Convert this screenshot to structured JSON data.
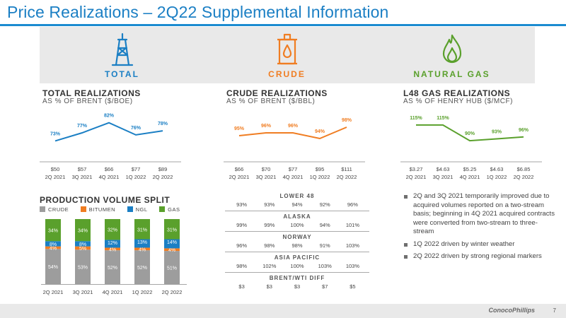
{
  "title": "Price Realizations – 2Q22 Supplemental Information",
  "colors": {
    "accent": "#1b7fc4",
    "total": "#1b7fc4",
    "crude": "#f07d22",
    "gas": "#5aa02c",
    "grey": "#9d9d9d"
  },
  "banner": {
    "total": {
      "label": "TOTAL",
      "icon": "oil-derrick-icon"
    },
    "crude": {
      "label": "CRUDE",
      "icon": "oil-drum-icon"
    },
    "gas": {
      "label": "NATURAL GAS",
      "icon": "flame-icon"
    }
  },
  "total_section": {
    "title": "TOTAL REALIZATIONS",
    "subtitle": "AS % OF BRENT ($/BOE)"
  },
  "crude_section": {
    "title": "CRUDE REALIZATIONS",
    "subtitle": "AS % OF BRENT ($/BBL)"
  },
  "gas_section": {
    "title": "L48 GAS REALIZATIONS",
    "subtitle": "AS % OF HENRY HUB ($/MCF)"
  },
  "production_section": {
    "title": "PRODUCTION VOLUME SPLIT",
    "legend": [
      "CRUDE",
      "BITUMEN",
      "NGL",
      "GAS"
    ]
  },
  "chart_data": [
    {
      "type": "line",
      "title": "TOTAL REALIZATIONS",
      "categories": [
        "2Q 2021",
        "3Q 2021",
        "4Q 2021",
        "1Q 2022",
        "2Q 2022"
      ],
      "prices": [
        "$50",
        "$57",
        "$66",
        "$77",
        "$89"
      ],
      "values": [
        73,
        77,
        82,
        76,
        78
      ],
      "value_labels": [
        "73%",
        "77%",
        "82%",
        "76%",
        "78%"
      ],
      "ylim": [
        70,
        84
      ]
    },
    {
      "type": "line",
      "title": "CRUDE REALIZATIONS",
      "categories": [
        "2Q 2021",
        "3Q 2021",
        "4Q 2021",
        "1Q 2022",
        "2Q 2022"
      ],
      "prices": [
        "$66",
        "$70",
        "$77",
        "$95",
        "$111"
      ],
      "values": [
        95,
        96,
        96,
        94,
        98
      ],
      "value_labels": [
        "95%",
        "96%",
        "96%",
        "94%",
        "98%"
      ],
      "ylim": [
        91,
        101
      ]
    },
    {
      "type": "line",
      "title": "L48 GAS REALIZATIONS",
      "categories": [
        "2Q 2021",
        "3Q 2021",
        "4Q 2021",
        "1Q 2022",
        "2Q 2022"
      ],
      "prices": [
        "$3.27",
        "$4.63",
        "$5.25",
        "$4.63",
        "$6.85"
      ],
      "values": [
        115,
        115,
        90,
        93,
        96
      ],
      "value_labels": [
        "115%",
        "115%",
        "90%",
        "93%",
        "96%"
      ],
      "ylim": [
        80,
        125
      ]
    },
    {
      "type": "bar",
      "title": "PRODUCTION VOLUME SPLIT",
      "stacked": true,
      "categories": [
        "2Q 2021",
        "3Q 2021",
        "4Q 2021",
        "1Q 2022",
        "2Q 2022"
      ],
      "series": [
        {
          "name": "CRUDE",
          "values": [
            54,
            53,
            52,
            52,
            51
          ],
          "labels": [
            "54%",
            "53%",
            "52%",
            "52%",
            "51%"
          ]
        },
        {
          "name": "BITUMEN",
          "values": [
            4,
            5,
            4,
            4,
            4
          ],
          "labels": [
            "4%",
            "5%",
            "4%",
            "4%",
            "4%"
          ]
        },
        {
          "name": "NGL",
          "values": [
            8,
            8,
            12,
            13,
            14
          ],
          "labels": [
            "8%",
            "8%",
            "12%",
            "13%",
            "14%"
          ]
        },
        {
          "name": "GAS",
          "values": [
            34,
            34,
            32,
            31,
            31
          ],
          "labels": [
            "34%",
            "34%",
            "32%",
            "31%",
            "31%"
          ]
        }
      ]
    }
  ],
  "region_table": {
    "regions": [
      {
        "name": "LOWER 48",
        "values": [
          "93%",
          "93%",
          "94%",
          "92%",
          "96%"
        ]
      },
      {
        "name": "ALASKA",
        "values": [
          "99%",
          "99%",
          "100%",
          "94%",
          "101%"
        ]
      },
      {
        "name": "NORWAY",
        "values": [
          "96%",
          "98%",
          "98%",
          "91%",
          "103%"
        ]
      },
      {
        "name": "ASIA PACIFIC",
        "values": [
          "98%",
          "102%",
          "100%",
          "103%",
          "103%"
        ]
      },
      {
        "name": "BRENT/WTI DIFF",
        "values": [
          "$3",
          "$3",
          "$3",
          "$7",
          "$5"
        ]
      }
    ]
  },
  "bullets": [
    "2Q and 3Q 2021 temporarily improved due to acquired volumes reported on a two-stream basis; beginning in 4Q 2021 acquired contracts were converted from two-stream to three-stream",
    "1Q 2022 driven by winter weather",
    "2Q 2022 driven by strong regional markers"
  ],
  "footer": {
    "logo": "ConocoPhillips",
    "page": "7"
  }
}
